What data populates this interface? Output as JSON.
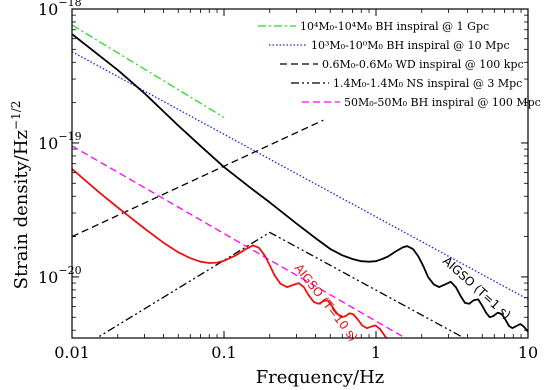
{
  "chart_data": {
    "type": "line",
    "xlabel": "Frequency/Hz",
    "ylabel": "Strain density/Hz",
    "ylabel_exponent": "−1/2",
    "x_scale": "log",
    "y_scale": "log",
    "xlim": [
      0.01,
      10
    ],
    "ylim": [
      3.5e-21,
      1e-18
    ],
    "x_ticks": [
      {
        "value": 0.01,
        "label": "0.01"
      },
      {
        "value": 0.1,
        "label": "0.1"
      },
      {
        "value": 1,
        "label": "1"
      },
      {
        "value": 10,
        "label": "10"
      }
    ],
    "y_ticks": [
      {
        "value": 1e-20,
        "base": "10",
        "exp": "−20"
      },
      {
        "value": 1e-19,
        "base": "10",
        "exp": "−19"
      },
      {
        "value": 1e-18,
        "base": "10",
        "exp": "−18"
      }
    ],
    "grid": false,
    "legend_position": "top-right",
    "legend": [
      {
        "series": "bh_1e4",
        "text": "10⁴M₀-10⁴M₀ BH inspiral @ 1 Gpc"
      },
      {
        "series": "bh_1e3",
        "text": "10³M₀-10⁰M₀ BH inspiral @ 10 Mpc"
      },
      {
        "series": "wd",
        "text": "0.6M₀-0.6M₀ WD inspiral @ 100 kpc"
      },
      {
        "series": "ns",
        "text": "1.4M₀-1.4M₀ NS inspiral @ 3 Mpc"
      },
      {
        "series": "bh_50",
        "text": "50M₀-50M₀ BH inspiral @ 100 Mpc"
      }
    ],
    "series": [
      {
        "id": "bh_1e4",
        "color": "#22dd22",
        "dash": "dashdot",
        "points": [
          [
            0.01,
            7.6e-19
          ],
          [
            0.1,
            1.55e-19
          ]
        ]
      },
      {
        "id": "bh_1e3",
        "color": "#1a1aff",
        "dash": "dotted",
        "points": [
          [
            0.01,
            4.8e-19
          ],
          [
            10,
            6.8e-21
          ]
        ]
      },
      {
        "id": "wd",
        "color": "#000000",
        "dash": "dashed",
        "points": [
          [
            0.01,
            2e-20
          ],
          [
            0.45,
            1.48e-19
          ]
        ]
      },
      {
        "id": "ns",
        "color": "#000000",
        "dash": "dashdotdot",
        "points": [
          [
            0.01,
            2.7e-21
          ],
          [
            0.2,
            2.15e-20
          ],
          [
            7,
            2.4e-21
          ]
        ]
      },
      {
        "id": "bh_50",
        "color": "#ff00ff",
        "dash": "dashed",
        "points": [
          [
            0.01,
            9.5e-20
          ],
          [
            3.4,
            2.1e-21
          ]
        ]
      },
      {
        "id": "aigso_1s",
        "color": "#000000",
        "dash": "solid",
        "points": [
          [
            0.01,
            6.5e-19
          ],
          [
            0.02,
            3.5e-19
          ],
          [
            0.03,
            2.35e-19
          ],
          [
            0.05,
            1.35e-19
          ],
          [
            0.07,
            9.5e-20
          ],
          [
            0.1,
            6.6e-20
          ],
          [
            0.15,
            4.6e-20
          ],
          [
            0.2,
            3.6e-20
          ],
          [
            0.3,
            2.5e-20
          ],
          [
            0.4,
            1.95e-20
          ],
          [
            0.5,
            1.62e-20
          ],
          [
            0.6,
            1.45e-20
          ],
          [
            0.7,
            1.36e-20
          ],
          [
            0.8,
            1.31e-20
          ],
          [
            0.9,
            1.3e-20
          ],
          [
            1.0,
            1.31e-20
          ],
          [
            1.1,
            1.36e-20
          ],
          [
            1.2,
            1.42e-20
          ],
          [
            1.35,
            1.55e-20
          ],
          [
            1.5,
            1.66e-20
          ],
          [
            1.6,
            1.7e-20
          ],
          [
            1.75,
            1.62e-20
          ],
          [
            1.9,
            1.42e-20
          ],
          [
            2.05,
            1.2e-20
          ],
          [
            2.2,
            1e-20
          ],
          [
            2.4,
            8.8e-21
          ],
          [
            2.6,
            8.4e-21
          ],
          [
            2.85,
            8.8e-21
          ],
          [
            3.1,
            9.2e-21
          ],
          [
            3.35,
            8.4e-21
          ],
          [
            3.6,
            7.2e-21
          ],
          [
            3.85,
            6.4e-21
          ],
          [
            4.1,
            6.3e-21
          ],
          [
            4.4,
            6.7e-21
          ],
          [
            4.7,
            6.8e-21
          ],
          [
            5.0,
            6.1e-21
          ],
          [
            5.3,
            5.4e-21
          ],
          [
            5.6,
            5e-21
          ],
          [
            5.9,
            5.1e-21
          ],
          [
            6.3,
            5.4e-21
          ],
          [
            6.7,
            5.3e-21
          ],
          [
            7.1,
            4.8e-21
          ],
          [
            7.5,
            4.3e-21
          ],
          [
            7.9,
            4.15e-21
          ],
          [
            8.4,
            4.3e-21
          ],
          [
            8.9,
            4.45e-21
          ],
          [
            9.4,
            4.25e-21
          ],
          [
            10,
            3.9e-21
          ]
        ]
      },
      {
        "id": "aigso_10s",
        "color": "#ee1111",
        "dash": "solid",
        "points": [
          [
            0.01,
            6.4e-20
          ],
          [
            0.015,
            4.3e-20
          ],
          [
            0.02,
            3.3e-20
          ],
          [
            0.03,
            2.3e-20
          ],
          [
            0.04,
            1.8e-20
          ],
          [
            0.05,
            1.53e-20
          ],
          [
            0.06,
            1.38e-20
          ],
          [
            0.07,
            1.3e-20
          ],
          [
            0.08,
            1.27e-20
          ],
          [
            0.09,
            1.28e-20
          ],
          [
            0.1,
            1.32e-20
          ],
          [
            0.12,
            1.45e-20
          ],
          [
            0.14,
            1.62e-20
          ],
          [
            0.155,
            1.72e-20
          ],
          [
            0.17,
            1.65e-20
          ],
          [
            0.185,
            1.45e-20
          ],
          [
            0.2,
            1.22e-20
          ],
          [
            0.215,
            1.03e-20
          ],
          [
            0.235,
            8.9e-21
          ],
          [
            0.26,
            8.4e-21
          ],
          [
            0.285,
            8.7e-21
          ],
          [
            0.31,
            9e-21
          ],
          [
            0.335,
            8.4e-21
          ],
          [
            0.36,
            7.3e-21
          ],
          [
            0.39,
            6.5e-21
          ],
          [
            0.42,
            6.3e-21
          ],
          [
            0.45,
            6.6e-21
          ],
          [
            0.48,
            6.7e-21
          ],
          [
            0.51,
            6.1e-21
          ],
          [
            0.55,
            5.4e-21
          ],
          [
            0.59,
            5e-21
          ],
          [
            0.63,
            5.1e-21
          ],
          [
            0.67,
            5.35e-21
          ],
          [
            0.71,
            5.25e-21
          ],
          [
            0.76,
            4.8e-21
          ],
          [
            0.81,
            4.35e-21
          ],
          [
            0.87,
            4.15e-21
          ],
          [
            0.93,
            4.25e-21
          ],
          [
            0.99,
            4.35e-21
          ],
          [
            1.06,
            4.1e-21
          ],
          [
            1.13,
            3.7e-21
          ],
          [
            1.2,
            3.35e-21
          ]
        ]
      }
    ],
    "annotations": [
      {
        "id": "annot_1s",
        "text": "AIGSO (T=1 s)",
        "color": "#000000"
      },
      {
        "id": "annot_10s",
        "text": "AIGSO (T=10 s)",
        "color": "#ee1111"
      }
    ]
  }
}
